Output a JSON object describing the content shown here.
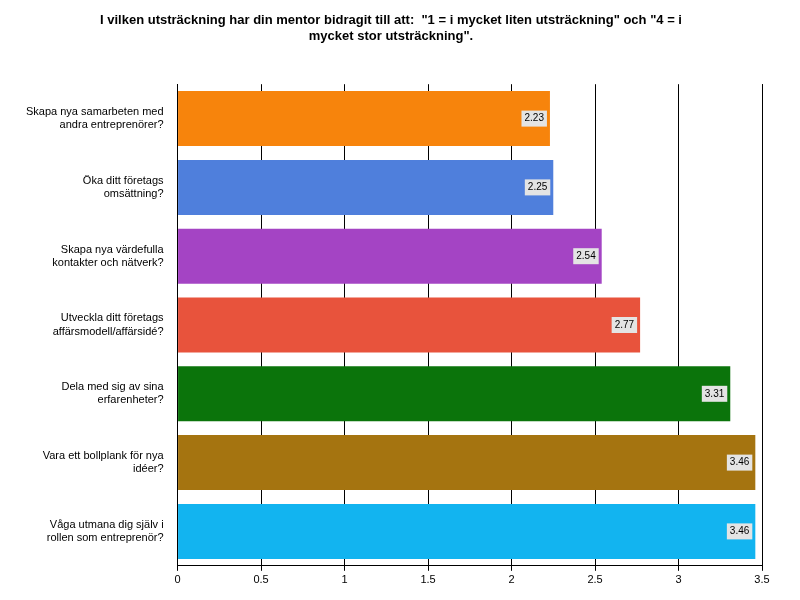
{
  "chart_data": {
    "type": "bar",
    "orientation": "horizontal",
    "title": "I vilken utsträckning har din mentor bidragit till att:  \"1 = i mycket liten utsträckning\" och \"4 = i mycket stor utsträckning\".",
    "categories": [
      "Skapa nya samarbeten med andra entreprenörer?",
      "Öka ditt företags omsättning?",
      "Skapa nya värdefulla kontakter och nätverk?",
      "Utveckla ditt företags affärsmodell/affärsidé?",
      "Dela med sig av sina erfarenheter?",
      "Vara ett bollplank för nya idéer?",
      "Våga utmana dig själv i rollen som entreprenör?"
    ],
    "values": [
      2.23,
      2.25,
      2.54,
      2.77,
      3.31,
      3.46,
      3.46
    ],
    "colors": [
      "#f7840c",
      "#4f7fdc",
      "#a444c4",
      "#e8533c",
      "#0b740b",
      "#a57410",
      "#12b4f0"
    ],
    "xlim": [
      0,
      3.5
    ],
    "xticks": [
      0,
      0.5,
      1,
      1.5,
      2,
      2.5,
      3,
      3.5
    ],
    "grid": true,
    "data_labels": true
  }
}
